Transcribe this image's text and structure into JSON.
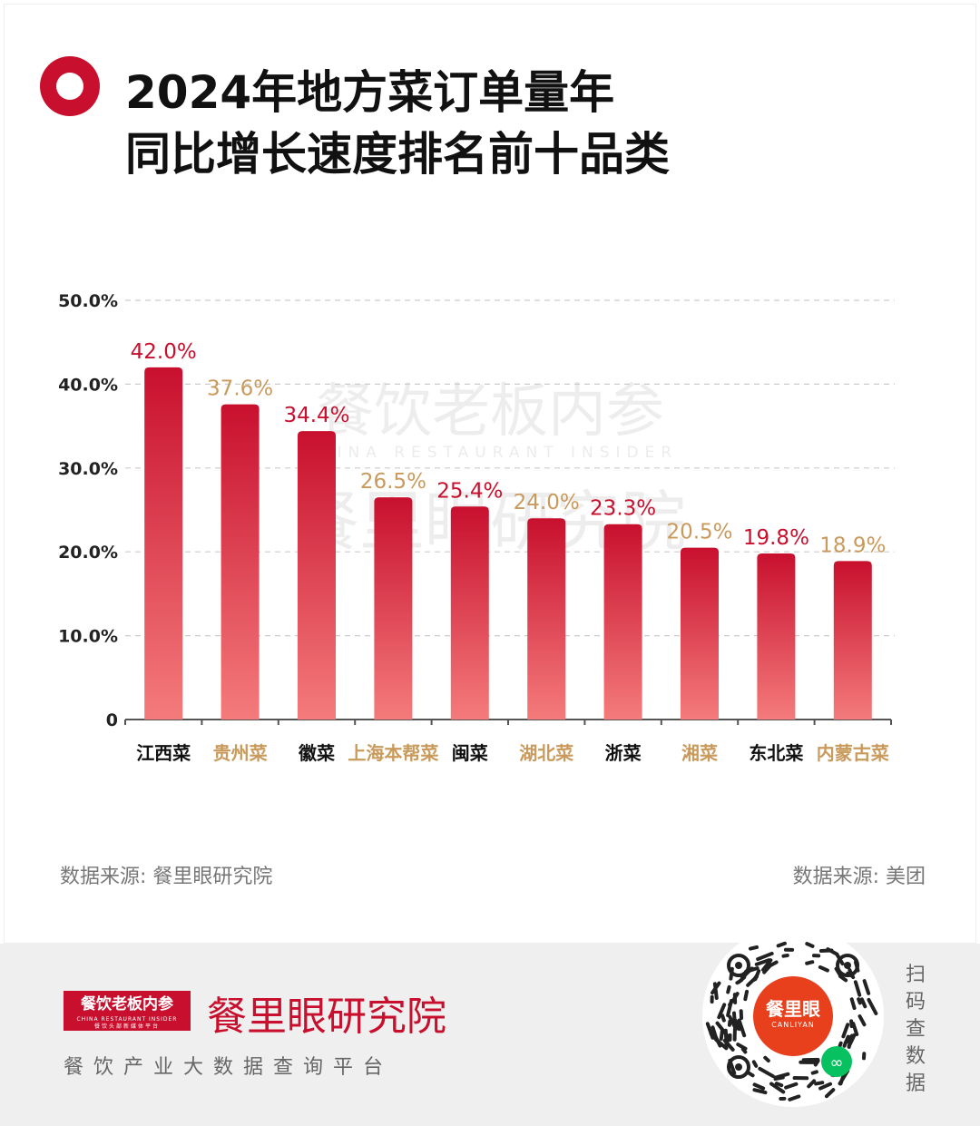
{
  "header": {
    "title_line1": "2024年地方菜订单量年",
    "title_line2": "同比增长速度排名前十品类"
  },
  "watermark": {
    "line1": "餐饮老板内参",
    "line2": "CHINA RESTAURANT INSIDER",
    "line3": "餐里眼研究院"
  },
  "chart_data": {
    "type": "bar",
    "title": "2024年地方菜订单量年同比增长速度排名前十品类",
    "categories": [
      "江西菜",
      "贵州菜",
      "徽菜",
      "上海本帮菜",
      "闽菜",
      "湖北菜",
      "浙菜",
      "湘菜",
      "东北菜",
      "内蒙古菜"
    ],
    "values": [
      42.0,
      37.6,
      34.4,
      26.5,
      25.4,
      24.0,
      23.3,
      20.5,
      19.8,
      18.9
    ],
    "value_labels": [
      "42.0%",
      "37.6%",
      "34.4%",
      "26.5%",
      "25.4%",
      "24.0%",
      "23.3%",
      "20.5%",
      "19.8%",
      "18.9%"
    ],
    "y_ticks": [
      0,
      10,
      20,
      30,
      40,
      50
    ],
    "y_tick_labels": [
      "0",
      "10.0%",
      "20.0%",
      "30.0%",
      "40.0%",
      "50.0%"
    ],
    "ylim": [
      0,
      50
    ],
    "grid": true,
    "xlabel": "",
    "ylabel": "",
    "colors": {
      "bar_top": "#c8102e",
      "bar_bottom": "#f47b7b",
      "label_red": "#c8102e",
      "label_gold": "#c99a5b",
      "category_dark": "#111111",
      "grid": "#cccccc",
      "axis": "#555555"
    }
  },
  "sources": {
    "left": "数据来源: 餐里眼研究院",
    "right": "数据来源: 美团"
  },
  "footer": {
    "brand_box_cn": "餐饮老板内参",
    "brand_box_en": "CHINA RESTAURANT INSIDER",
    "brand_box_sub": "餐饮头部新媒体平台",
    "brand_name": "餐里眼研究院",
    "tagline": "餐饮产业大数据查询平台",
    "qr_center_cn": "餐里眼",
    "qr_center_en": "CANLIYAN",
    "scan_chars": [
      "扫",
      "码",
      "查",
      "数",
      "据"
    ]
  }
}
